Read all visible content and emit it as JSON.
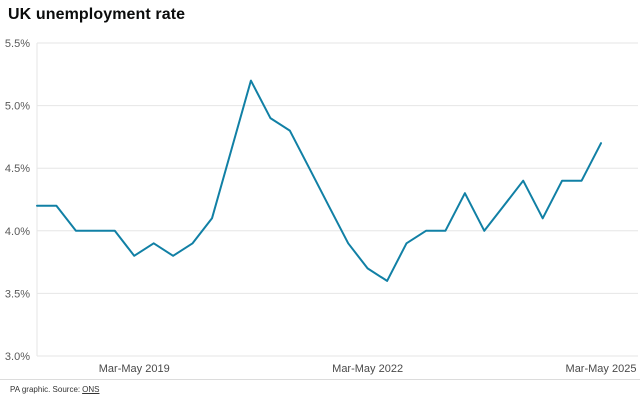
{
  "title": "UK unemployment rate",
  "footer": {
    "credit": "PA graphic. Source:",
    "source_link": "ONS"
  },
  "colors": {
    "line": "#1180a5",
    "grid": "#e6e6e6",
    "y_tick_label": "#595959",
    "x_tick_label": "#4a4a4a",
    "title": "#0b0c0c",
    "footer_text": "#333333",
    "divider": "#dcdcdc",
    "background": "#ffffff"
  },
  "chart_data": {
    "type": "line",
    "title": "UK unemployment rate",
    "unit": "%",
    "xlabel": "",
    "ylabel": "",
    "ylim": [
      3.0,
      5.5
    ],
    "grid": true,
    "legend": false,
    "y_ticks": [
      {
        "value": 5.5,
        "label": "5.5%"
      },
      {
        "value": 5.0,
        "label": "5.0%"
      },
      {
        "value": 4.5,
        "label": "4.5%"
      },
      {
        "value": 4.0,
        "label": "4.0%"
      },
      {
        "value": 3.5,
        "label": "3.5%"
      },
      {
        "value": 3.0,
        "label": "3.0%"
      }
    ],
    "x_ticks": [
      {
        "index": 5,
        "label": "Mar-May 2019"
      },
      {
        "index": 17,
        "label": "Mar-May 2022"
      },
      {
        "index": 29,
        "label": "Mar-May 2025"
      }
    ],
    "series": [
      {
        "name": "UK unemployment rate",
        "values": [
          4.2,
          4.2,
          4.0,
          4.0,
          4.0,
          3.8,
          3.9,
          3.8,
          3.9,
          4.1,
          4.65,
          5.2,
          4.9,
          4.8,
          4.5,
          4.2,
          3.9,
          3.7,
          3.6,
          3.9,
          4.0,
          4.0,
          4.3,
          4.0,
          4.2,
          4.4,
          4.1,
          4.4,
          4.4,
          4.7
        ]
      }
    ]
  }
}
